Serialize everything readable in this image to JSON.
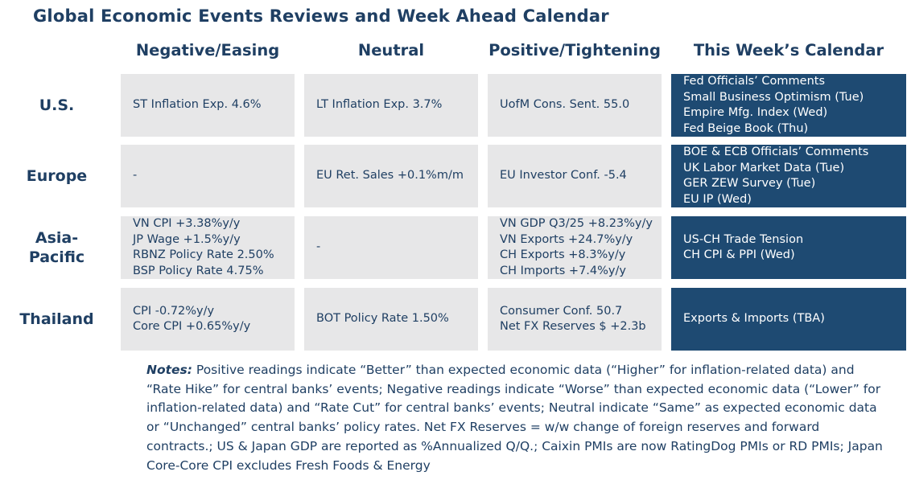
{
  "title": "Global Economic Events Reviews and Week Ahead Calendar",
  "columns": [
    "Negative/Easing",
    "Neutral",
    "Positive/Tightening",
    "This Week’s Calendar"
  ],
  "rows": [
    {
      "label": "U.S.",
      "negative": [
        "ST Inflation Exp. 4.6%"
      ],
      "neutral": [
        "LT Inflation Exp. 3.7%"
      ],
      "positive": [
        "UofM Cons. Sent. 55.0"
      ],
      "calendar": [
        "Fed Officials’ Comments",
        "Small Business Optimism (Tue)",
        "Empire Mfg. Index (Wed)",
        "Fed Beige Book (Thu)"
      ]
    },
    {
      "label": "Europe",
      "negative": [
        "-"
      ],
      "neutral": [
        "EU Ret. Sales +0.1%m/m"
      ],
      "positive": [
        "EU Investor Conf. -5.4"
      ],
      "calendar": [
        "BOE & ECB Officials’ Comments",
        "UK Labor Market Data (Tue)",
        "GER ZEW Survey (Tue)",
        "EU IP (Wed)"
      ]
    },
    {
      "label_line1": "Asia-",
      "label_line2": "Pacific",
      "negative": [
        "VN CPI +3.38%y/y",
        "JP Wage +1.5%y/y",
        "RBNZ Policy Rate 2.50%",
        "BSP Policy Rate 4.75%"
      ],
      "neutral": [
        "-"
      ],
      "positive": [
        "VN GDP Q3/25 +8.23%y/y",
        "VN Exports +24.7%y/y",
        "CH Exports +8.3%y/y",
        "CH Imports +7.4%y/y"
      ],
      "calendar": [
        "US-CH Trade Tension",
        "CH CPI & PPI (Wed)"
      ]
    },
    {
      "label": "Thailand",
      "negative": [
        "CPI -0.72%y/y",
        "Core CPI +0.65%y/y"
      ],
      "neutral": [
        "BOT Policy Rate 1.50%"
      ],
      "positive": [
        "Consumer Conf. 50.7",
        "Net FX Reserves $ +2.3b"
      ],
      "calendar": [
        "Exports & Imports (TBA)"
      ]
    }
  ],
  "notes": {
    "label": "Notes:",
    "text": " Positive readings indicate “Better” than expected economic data (“Higher” for inflation-related data) and “Rate Hike” for central banks’ events; Negative readings indicate “Worse” than expected economic data (“Lower” for inflation-related data) and “Rate Cut” for central banks’ events; Neutral indicate “Same” as expected economic data or “Unchanged” central banks’ policy rates. Net FX Reserves = w/w change of foreign reserves and forward contracts.; US & Japan GDP are reported as %Annualized Q/Q.; Caixin PMIs are now RatingDog PMIs or RD PMIs; Japan Core-Core CPI excludes Fresh Foods & Energy"
  },
  "colors": {
    "accent": "#1f3f63",
    "calendar_bg": "#1e4a72",
    "cell_bg": "#e7e7e8"
  }
}
